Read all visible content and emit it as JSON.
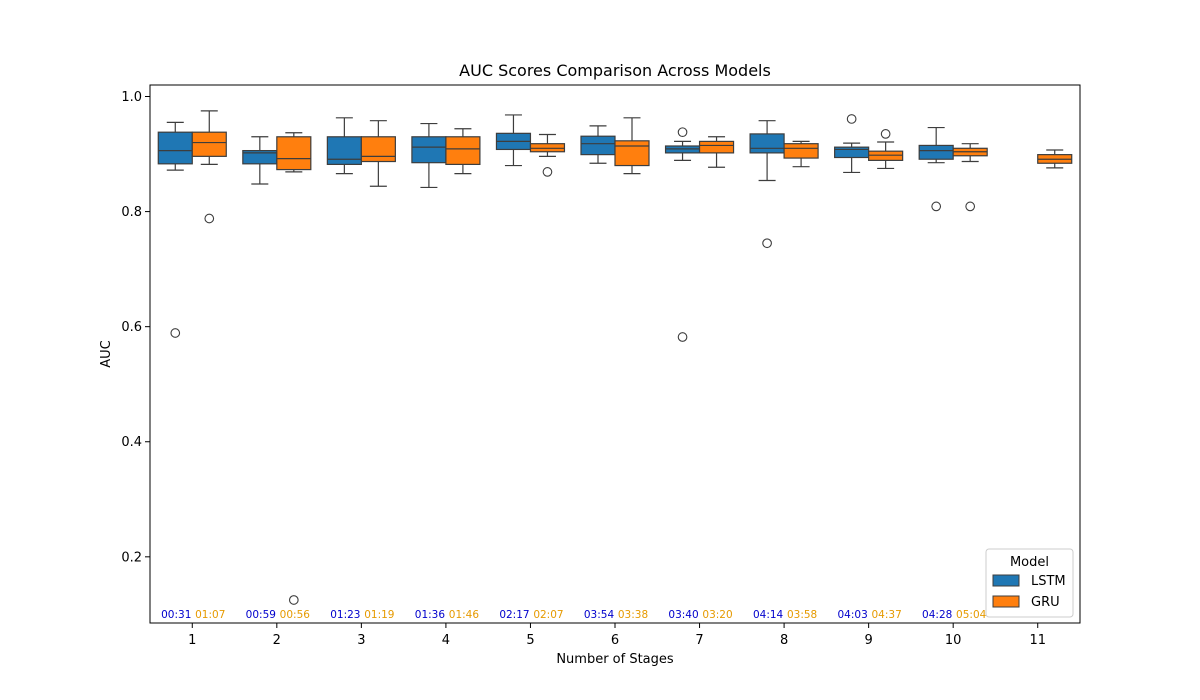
{
  "chart_data": {
    "type": "box",
    "title": "AUC Scores Comparison Across Models",
    "xlabel": "Number of Stages",
    "ylabel": "AUC",
    "categories": [
      "1",
      "2",
      "3",
      "4",
      "5",
      "6",
      "7",
      "8",
      "9",
      "10",
      "11"
    ],
    "ylim": [
      0.085,
      1.02
    ],
    "yticks": [
      "0.2",
      "0.4",
      "0.6",
      "0.8",
      "1.0"
    ],
    "ytick_values": [
      0.2,
      0.4,
      0.6,
      0.8,
      1.0
    ],
    "legend": {
      "title": "Model",
      "placement": "lower-right"
    },
    "series": [
      {
        "name": "LSTM",
        "color": "#1f77b4",
        "time_color": "#0000cc",
        "boxes": [
          {
            "whislo": 0.872,
            "q1": 0.883,
            "med": 0.906,
            "q3": 0.938,
            "whishi": 0.955,
            "fliers": [
              0.589
            ]
          },
          {
            "whislo": 0.848,
            "q1": 0.883,
            "med": 0.902,
            "q3": 0.906,
            "whishi": 0.93,
            "fliers": []
          },
          {
            "whislo": 0.866,
            "q1": 0.882,
            "med": 0.891,
            "q3": 0.93,
            "whishi": 0.963,
            "fliers": []
          },
          {
            "whislo": 0.842,
            "q1": 0.885,
            "med": 0.912,
            "q3": 0.93,
            "whishi": 0.953,
            "fliers": []
          },
          {
            "whislo": 0.88,
            "q1": 0.908,
            "med": 0.922,
            "q3": 0.936,
            "whishi": 0.968,
            "fliers": []
          },
          {
            "whislo": 0.884,
            "q1": 0.899,
            "med": 0.918,
            "q3": 0.931,
            "whishi": 0.949,
            "fliers": []
          },
          {
            "whislo": 0.889,
            "q1": 0.902,
            "med": 0.909,
            "q3": 0.914,
            "whishi": 0.922,
            "fliers": [
              0.938,
              0.582
            ]
          },
          {
            "whislo": 0.854,
            "q1": 0.902,
            "med": 0.91,
            "q3": 0.935,
            "whishi": 0.958,
            "fliers": [
              0.745
            ]
          },
          {
            "whislo": 0.868,
            "q1": 0.894,
            "med": 0.908,
            "q3": 0.912,
            "whishi": 0.919,
            "fliers": [
              0.961
            ]
          },
          {
            "whislo": 0.885,
            "q1": 0.891,
            "med": 0.906,
            "q3": 0.915,
            "whishi": 0.946,
            "fliers": [
              0.809
            ]
          },
          null
        ],
        "times": [
          "00:31",
          "00:59",
          "01:23",
          "01:36",
          "02:17",
          "03:54",
          "03:40",
          "04:14",
          "04:03",
          "04:28",
          ""
        ]
      },
      {
        "name": "GRU",
        "color": "#ff7f0e",
        "time_color": "#e69a00",
        "boxes": [
          {
            "whislo": 0.882,
            "q1": 0.896,
            "med": 0.92,
            "q3": 0.938,
            "whishi": 0.975,
            "fliers": [
              0.788
            ]
          },
          {
            "whislo": 0.869,
            "q1": 0.873,
            "med": 0.892,
            "q3": 0.93,
            "whishi": 0.937,
            "fliers": [
              0.125
            ]
          },
          {
            "whislo": 0.844,
            "q1": 0.887,
            "med": 0.896,
            "q3": 0.93,
            "whishi": 0.958,
            "fliers": []
          },
          {
            "whislo": 0.866,
            "q1": 0.882,
            "med": 0.909,
            "q3": 0.93,
            "whishi": 0.944,
            "fliers": []
          },
          {
            "whislo": 0.896,
            "q1": 0.904,
            "med": 0.91,
            "q3": 0.918,
            "whishi": 0.934,
            "fliers": [
              0.869
            ]
          },
          {
            "whislo": 0.866,
            "q1": 0.88,
            "med": 0.914,
            "q3": 0.923,
            "whishi": 0.963,
            "fliers": []
          },
          {
            "whislo": 0.877,
            "q1": 0.902,
            "med": 0.915,
            "q3": 0.922,
            "whishi": 0.93,
            "fliers": []
          },
          {
            "whislo": 0.878,
            "q1": 0.893,
            "med": 0.91,
            "q3": 0.918,
            "whishi": 0.922,
            "fliers": []
          },
          {
            "whislo": 0.875,
            "q1": 0.889,
            "med": 0.898,
            "q3": 0.905,
            "whishi": 0.921,
            "fliers": [
              0.935
            ]
          },
          {
            "whislo": 0.887,
            "q1": 0.897,
            "med": 0.904,
            "q3": 0.91,
            "whishi": 0.918,
            "fliers": [
              0.809
            ]
          },
          {
            "whislo": 0.876,
            "q1": 0.884,
            "med": 0.891,
            "q3": 0.899,
            "whishi": 0.907,
            "fliers": []
          }
        ],
        "times": [
          "01:07",
          "00:56",
          "01:19",
          "01:46",
          "02:07",
          "03:38",
          "03:20",
          "03:58",
          "04:37",
          "05:04",
          ""
        ]
      }
    ]
  }
}
